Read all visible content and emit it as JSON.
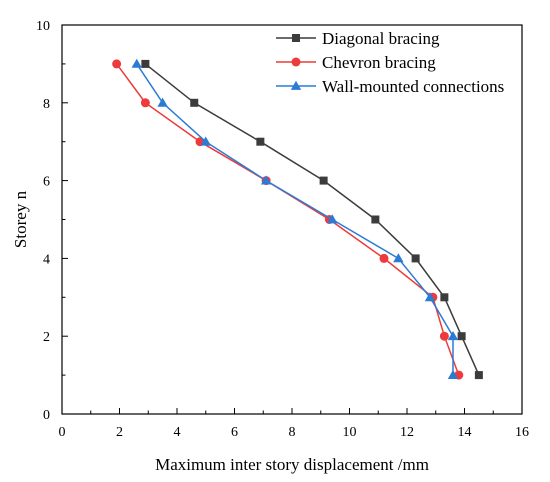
{
  "chart_data": {
    "type": "line",
    "title": "",
    "xlabel": "Maximum inter story displacement /mm",
    "ylabel": "Storey n",
    "xlim": [
      0,
      16
    ],
    "ylim": [
      0,
      10
    ],
    "xticks": [
      "0",
      "2",
      "4",
      "6",
      "8",
      "10",
      "12",
      "14",
      "16"
    ],
    "yticks": [
      "0",
      "2",
      "4",
      "6",
      "8",
      "10"
    ],
    "grid": false,
    "legend_position": "top-right",
    "series": [
      {
        "name": "Diagonal bracing",
        "color": "#3c3c3c",
        "marker": "square",
        "points": [
          {
            "x": 2.9,
            "y": 9
          },
          {
            "x": 4.6,
            "y": 8
          },
          {
            "x": 6.9,
            "y": 7
          },
          {
            "x": 9.1,
            "y": 6
          },
          {
            "x": 10.9,
            "y": 5
          },
          {
            "x": 12.3,
            "y": 4
          },
          {
            "x": 13.3,
            "y": 3
          },
          {
            "x": 13.9,
            "y": 2
          },
          {
            "x": 14.5,
            "y": 1
          }
        ]
      },
      {
        "name": "Chevron bracing",
        "color": "#ee3a3a",
        "marker": "circle",
        "points": [
          {
            "x": 1.9,
            "y": 9
          },
          {
            "x": 2.9,
            "y": 8
          },
          {
            "x": 4.8,
            "y": 7
          },
          {
            "x": 7.1,
            "y": 6
          },
          {
            "x": 9.3,
            "y": 5
          },
          {
            "x": 11.2,
            "y": 4
          },
          {
            "x": 12.9,
            "y": 3
          },
          {
            "x": 13.3,
            "y": 2
          },
          {
            "x": 13.8,
            "y": 1
          }
        ]
      },
      {
        "name": "Wall-mounted connections",
        "color": "#2b7bd6",
        "marker": "triangle",
        "points": [
          {
            "x": 2.6,
            "y": 9
          },
          {
            "x": 3.5,
            "y": 8
          },
          {
            "x": 5.0,
            "y": 7
          },
          {
            "x": 7.1,
            "y": 6
          },
          {
            "x": 9.4,
            "y": 5
          },
          {
            "x": 11.7,
            "y": 4
          },
          {
            "x": 12.8,
            "y": 3
          },
          {
            "x": 13.6,
            "y": 2
          },
          {
            "x": 13.6,
            "y": 1
          }
        ]
      }
    ]
  }
}
